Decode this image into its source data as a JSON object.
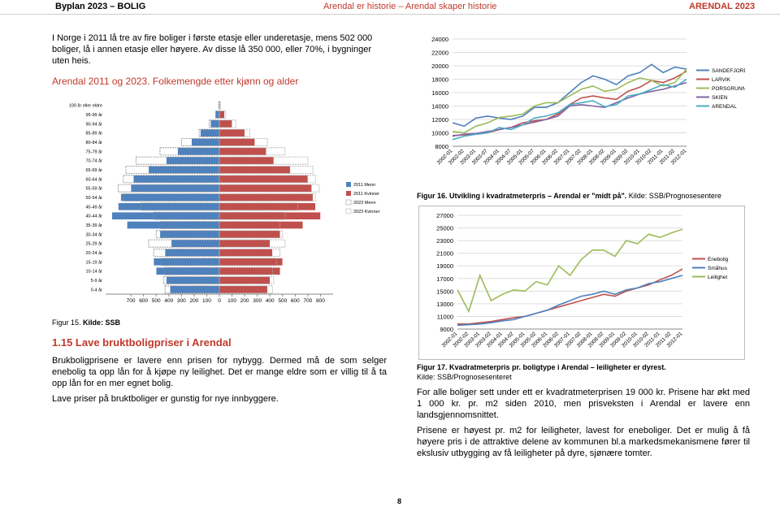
{
  "header": {
    "left": "Byplan 2023 – BOLIG",
    "center": "Arendal er historie – Arendal skaper historie",
    "right": "ARENDAL 2023"
  },
  "intro": "I Norge i 2011 lå tre av fire boliger i første etasje eller underetasje, mens 502 000 boliger, lå i annen etasje eller høyere. Av disse lå 350 000, eller 70%, i bygninger uten heis.",
  "pyramid_heading": "Arendal 2011 og 2023. Folkemengde etter kjønn og alder",
  "captions": [
    {
      "label": "Figur 15.",
      "source": "Kilde: SSB"
    },
    {
      "label": "Figur 16. Utvikling i kvadratmeterpris – Arendal er \"midt på\".",
      "source": "Kilde: SSB/Prognosesentere"
    },
    {
      "label": "Figur 17. Kvadratmeterpris pr. boligtype i Arendal – leiligheter er dyrest.",
      "source": "Kilde: SSB/Prognosesenteret"
    }
  ],
  "section": {
    "heading": "1.15 Lave bruktboligpriser i Arendal",
    "paragraphs": [
      "Brukboligprisene er lavere enn prisen for nybygg. Dermed må de som selger enebolig ta opp lån for å kjøpe ny leilighet. Det er mange eldre som er villig til å ta opp lån for en mer egnet bolig.",
      "Lave priser på bruktboliger er gunstig for nye innbyggere."
    ]
  },
  "right_paragraphs": [
    "For alle boliger sett under ett er kvadratmeterprisen 19 000 kr. Prisene har økt med 1 000 kr. pr. m2 siden 2010, men prisveksten i Arendal er lavere enn landsgjennomsnittet.",
    "Prisene er høyest pr. m2 for leiligheter, lavest for eneboliger. Det er mulig å få høyere pris i de attraktive delene av kommunen bl.a markedsmekanismene fører til ekslusiv utbygging av få leiligheter på dyre, sjønære tomter."
  ],
  "page_number": 8,
  "chart_data": [
    {
      "type": "bar",
      "orientation": "horizontal",
      "categories": [
        "100 år eller eldre",
        "95-99 år",
        "90-94 år",
        "85-89 år",
        "80-84 år",
        "75-79 år",
        "70-74 år",
        "65-69 år",
        "60-64 år",
        "55-59 år",
        "50-54 år",
        "45-49 år",
        "40-44 år",
        "35-39 år",
        "30-34 år",
        "25-29 år",
        "20-24 år",
        "15-19 år",
        "10-14 år",
        "5-9 år",
        "0-4 år"
      ],
      "series": [
        {
          "name": "2011 Menn",
          "color": "#4f81bd",
          "style": "filled",
          "values": [
            -5,
            -30,
            -70,
            -150,
            -220,
            -330,
            -420,
            -560,
            -680,
            -700,
            -780,
            -800,
            -850,
            -730,
            -470,
            -380,
            -430,
            -520,
            -500,
            -420,
            -390
          ]
        },
        {
          "name": "2011 Kvinner",
          "color": "#c0504d",
          "style": "filled",
          "values": [
            5,
            40,
            100,
            200,
            280,
            370,
            430,
            560,
            700,
            730,
            740,
            760,
            800,
            660,
            480,
            400,
            420,
            500,
            480,
            400,
            380
          ]
        },
        {
          "name": "2023 Menn",
          "color": "#888888",
          "style": "outline",
          "values": [
            -5,
            -30,
            -80,
            -160,
            -300,
            -470,
            -660,
            -740,
            -760,
            -800,
            -760,
            -620,
            -520,
            -470,
            -500,
            -560,
            -520,
            -460,
            -430,
            -440,
            -430
          ]
        },
        {
          "name": "2023 Kvinner",
          "color": "#aaaaaa",
          "style": "outline",
          "values": [
            10,
            50,
            130,
            240,
            380,
            520,
            700,
            740,
            760,
            790,
            760,
            620,
            520,
            480,
            500,
            520,
            480,
            450,
            420,
            430,
            420
          ]
        }
      ],
      "xlim": [
        -900,
        900
      ],
      "xticks": [
        {
          "value": -700,
          "label": "700"
        },
        {
          "value": -600,
          "label": "600"
        },
        {
          "value": -500,
          "label": "500"
        },
        {
          "value": -400,
          "label": "400"
        },
        {
          "value": -300,
          "label": "300"
        },
        {
          "value": -200,
          "label": "200"
        },
        {
          "value": -100,
          "label": "100"
        },
        0,
        100,
        200,
        300,
        400,
        500,
        600,
        700,
        800
      ],
      "legend": "right"
    },
    {
      "type": "line",
      "categories": [
        "2002-01",
        "2002-02",
        "2003-01",
        "2003-07",
        "2004-01",
        "2004-07",
        "2005-01",
        "2005-07",
        "2006-01",
        "2006-02",
        "2007-01",
        "2007-02",
        "2008-01",
        "2008-02",
        "2009-01",
        "2009-02",
        "2010-01",
        "2010-02",
        "2011-01",
        "2011-02",
        "2012-01"
      ],
      "series": [
        {
          "name": "SANDEFJORD",
          "color": "#4f81bd",
          "values": [
            11500,
            11000,
            12200,
            12500,
            12200,
            12000,
            12500,
            13800,
            13800,
            14500,
            16000,
            17500,
            18500,
            18000,
            17200,
            18500,
            19000,
            20200,
            19000,
            19800,
            19500
          ]
        },
        {
          "name": "LARVIK",
          "color": "#c0504d",
          "values": [
            9600,
            9700,
            9800,
            10000,
            10500,
            10800,
            11500,
            11800,
            12000,
            12800,
            14200,
            15200,
            15500,
            15200,
            15000,
            16200,
            16800,
            17800,
            17500,
            18200,
            19200
          ]
        },
        {
          "name": "PORSGRUNN",
          "color": "#9bbb59",
          "values": [
            10200,
            10000,
            11000,
            11500,
            12300,
            12500,
            12800,
            14000,
            14500,
            14500,
            15500,
            16500,
            17000,
            16200,
            16500,
            17500,
            18200,
            17800,
            17000,
            17500,
            19500
          ]
        },
        {
          "name": "SKIEN",
          "color": "#8064a2",
          "values": [
            9500,
            9800,
            9900,
            10200,
            10500,
            10800,
            11200,
            11600,
            12000,
            12500,
            14000,
            14200,
            14000,
            13800,
            14500,
            15200,
            15800,
            16200,
            16500,
            17000,
            17500
          ]
        },
        {
          "name": "ARENDAL",
          "color": "#4bacc6",
          "values": [
            9000,
            9500,
            9800,
            10000,
            10800,
            10500,
            11200,
            12200,
            12500,
            13000,
            14200,
            14500,
            14800,
            13900,
            14200,
            15500,
            15800,
            16500,
            17200,
            16800,
            18000
          ]
        }
      ],
      "ylim": [
        8000,
        24000
      ],
      "yticks": [
        8000,
        10000,
        12000,
        14000,
        16000,
        18000,
        20000,
        22000,
        24000
      ],
      "grid": true,
      "legend": "right"
    },
    {
      "type": "line",
      "categories": [
        "2002-01",
        "2002-02",
        "2003-01",
        "2003-02",
        "2004-01",
        "2004-02",
        "2005-01",
        "2005-02",
        "2006-01",
        "2006-02",
        "2007-01",
        "2007-02",
        "2008-01",
        "2008-02",
        "2009-01",
        "2009-02",
        "2010-01",
        "2010-02",
        "2011-01",
        "2011-02",
        "2012-01"
      ],
      "series": [
        {
          "name": "Enebolig",
          "color": "#c0504d",
          "values": [
            9800,
            9800,
            10000,
            10200,
            10500,
            10800,
            11000,
            11500,
            12000,
            12500,
            13000,
            13500,
            14000,
            14500,
            14200,
            15000,
            15500,
            16000,
            16800,
            17500,
            18500
          ]
        },
        {
          "name": "Småhus",
          "color": "#4f81bd",
          "values": [
            9600,
            9700,
            9800,
            10000,
            10300,
            10500,
            11000,
            11500,
            12000,
            12800,
            13500,
            14200,
            14500,
            15000,
            14500,
            15200,
            15500,
            16200,
            16500,
            17000,
            17500
          ]
        },
        {
          "name": "Leilighet",
          "color": "#9bbb59",
          "values": [
            15200,
            11800,
            17500,
            13500,
            14500,
            15200,
            15000,
            16500,
            16000,
            19000,
            17500,
            20000,
            21500,
            21500,
            20500,
            23000,
            22500,
            24000,
            23500,
            24200,
            24800
          ]
        }
      ],
      "ylim": [
        9000,
        27000
      ],
      "yticks": [
        9000,
        11000,
        13000,
        15000,
        17000,
        19000,
        21000,
        23000,
        25000,
        27000
      ],
      "grid": true,
      "legend": "right"
    }
  ]
}
